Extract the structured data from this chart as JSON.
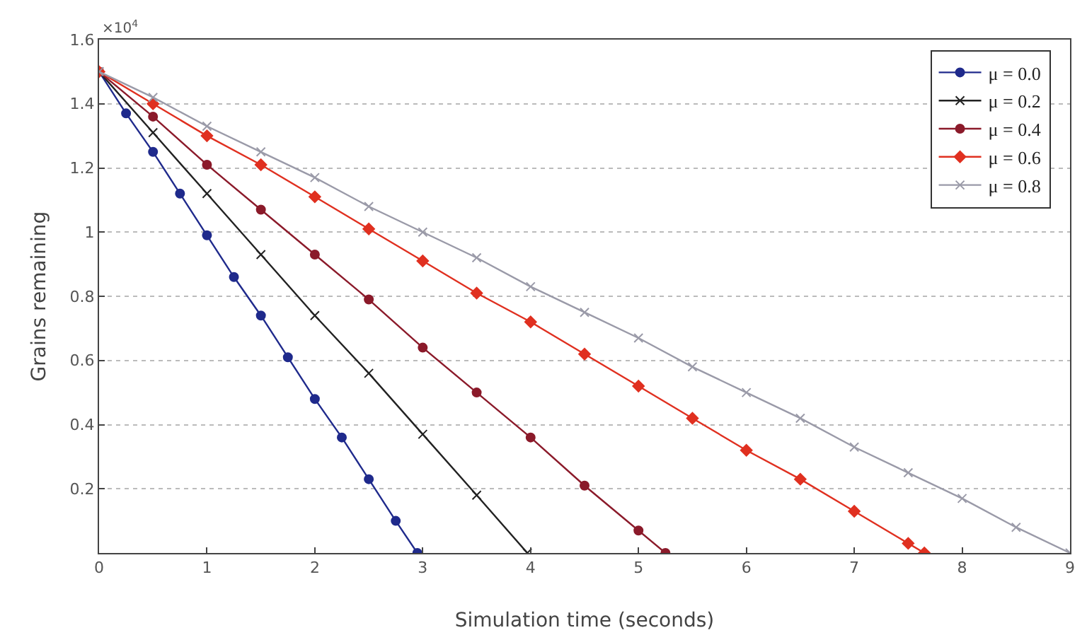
{
  "chart_data": {
    "type": "line",
    "xlabel": "Simulation time (seconds)",
    "ylabel": "Grains remaining",
    "annotations": [
      "×10$^{4}$"
    ],
    "xlim": [
      0,
      9
    ],
    "xticks": [
      0,
      1,
      2,
      3,
      4,
      5,
      6,
      7,
      8,
      9
    ],
    "ylim": [
      0,
      1.6
    ],
    "yticks": [
      0.2,
      0.4,
      0.6,
      0.8,
      1,
      1.2,
      1.4,
      1.6
    ],
    "grid": "y",
    "legend": "top right",
    "line_style": "solid",
    "series": [
      {
        "name": "μ = 0.0",
        "color": "#1f2a8c",
        "marker": "circle",
        "x": [
          0,
          0.25,
          0.5,
          0.75,
          1,
          1.25,
          1.5,
          1.75,
          2,
          2.25,
          2.5,
          2.75,
          2.95
        ],
        "values": [
          1.5,
          1.37,
          1.25,
          1.12,
          0.99,
          0.86,
          0.74,
          0.61,
          0.48,
          0.36,
          0.23,
          0.1,
          0
        ]
      },
      {
        "name": "μ = 0.2",
        "color": "#222222",
        "marker": "cross",
        "x": [
          0,
          0.5,
          1,
          1.5,
          2,
          2.5,
          3,
          3.5,
          3.97
        ],
        "values": [
          1.5,
          1.31,
          1.12,
          0.93,
          0.74,
          0.56,
          0.37,
          0.18,
          0
        ]
      },
      {
        "name": "μ = 0.4",
        "color": "#8b1a2a",
        "marker": "circle",
        "x": [
          0,
          0.5,
          1,
          1.5,
          2,
          2.5,
          3,
          3.5,
          4,
          4.5,
          5,
          5.25
        ],
        "values": [
          1.5,
          1.36,
          1.21,
          1.07,
          0.93,
          0.79,
          0.64,
          0.5,
          0.36,
          0.21,
          0.07,
          0
        ]
      },
      {
        "name": "μ = 0.6",
        "color": "#e03020",
        "marker": "diamond",
        "x": [
          0,
          0.5,
          1,
          1.5,
          2,
          2.5,
          3,
          3.5,
          4,
          4.5,
          5,
          5.5,
          6,
          6.5,
          7,
          7.5,
          7.65
        ],
        "values": [
          1.5,
          1.4,
          1.3,
          1.21,
          1.11,
          1.01,
          0.91,
          0.81,
          0.72,
          0.62,
          0.52,
          0.42,
          0.32,
          0.23,
          0.13,
          0.03,
          0
        ]
      },
      {
        "name": "μ = 0.8",
        "color": "#9a9aa8",
        "marker": "cross",
        "x": [
          0,
          0.5,
          1,
          1.5,
          2,
          2.5,
          3,
          3.5,
          4,
          4.5,
          5,
          5.5,
          6,
          6.5,
          7,
          7.5,
          8,
          8.5,
          9
        ],
        "values": [
          1.5,
          1.42,
          1.33,
          1.25,
          1.17,
          1.08,
          1,
          0.92,
          0.83,
          0.75,
          0.67,
          0.58,
          0.5,
          0.42,
          0.33,
          0.25,
          0.17,
          0.08,
          0
        ]
      }
    ]
  }
}
